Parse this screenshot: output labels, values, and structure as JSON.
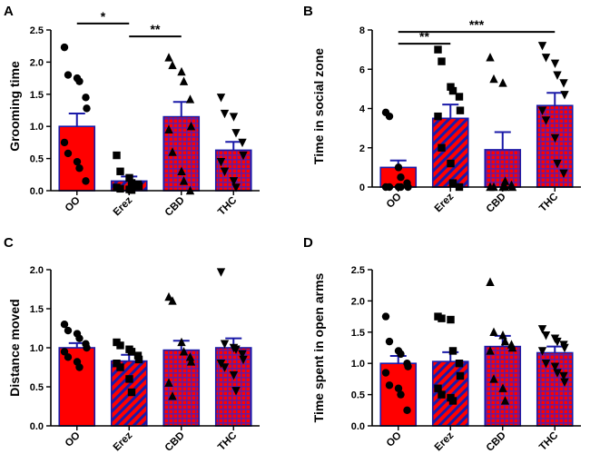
{
  "colors": {
    "red": "#ff0000",
    "blue": "#1a1aa8",
    "axis": "#000000"
  },
  "chart_data": [
    {
      "panel": "A",
      "type": "bar",
      "ylabel": "Grooming time",
      "ylim": [
        0,
        2.5
      ],
      "yticks": [
        "0.0",
        "0.5",
        "1.0",
        "1.5",
        "2.0",
        "2.5"
      ],
      "ytick_values": [
        0,
        0.5,
        1.0,
        1.5,
        2.0,
        2.5
      ],
      "categories": [
        "OO",
        "Erez",
        "CBD",
        "THC"
      ],
      "values": [
        1.0,
        0.15,
        1.15,
        0.63
      ],
      "errors": [
        0.2,
        0.07,
        0.23,
        0.13
      ],
      "points": [
        [
          2.23,
          1.8,
          1.75,
          1.7,
          1.45,
          1.28,
          0.75,
          0.58,
          0.45,
          0.35,
          0.15
        ],
        [
          0.55,
          0.3,
          0.2,
          0.12,
          0.1,
          0.07,
          0.05,
          0.03,
          0.02,
          0.01
        ],
        [
          2.07,
          1.95,
          1.85,
          1.7,
          1.42,
          1.0,
          0.95,
          0.6,
          0.3,
          0.15,
          0.0
        ],
        [
          1.45,
          1.2,
          1.15,
          0.9,
          0.75,
          0.55,
          0.45,
          0.3,
          0.15,
          0.05
        ]
      ],
      "significance": [
        {
          "from": 0,
          "to": 1,
          "label": "*",
          "y": 2.6
        },
        {
          "from": 1,
          "to": 2,
          "label": "**",
          "y": 2.4
        }
      ]
    },
    {
      "panel": "B",
      "type": "bar",
      "ylabel": "Time in social zone",
      "ylim": [
        0,
        8
      ],
      "yticks": [
        "0",
        "2",
        "4",
        "6",
        "8"
      ],
      "ytick_values": [
        0,
        2,
        4,
        6,
        8
      ],
      "categories": [
        "OO",
        "Erez",
        "CBD",
        "THC"
      ],
      "values": [
        1.0,
        3.5,
        1.9,
        4.15
      ],
      "errors": [
        0.35,
        0.7,
        0.9,
        0.65
      ],
      "points": [
        [
          3.8,
          3.6,
          1.0,
          0.5,
          0.2,
          0.0,
          0.0,
          0.0,
          0.0,
          0.0
        ],
        [
          7.0,
          6.4,
          5.1,
          4.9,
          4.6,
          3.9,
          3.6,
          2.0,
          1.2,
          0.2,
          0.0
        ],
        [
          6.6,
          5.5,
          5.3,
          0.3,
          0.1,
          0.0,
          0.0,
          0.0,
          0.0,
          0.0
        ],
        [
          7.2,
          6.6,
          6.3,
          5.7,
          5.3,
          4.7,
          3.9,
          3.4,
          2.5,
          1.2,
          0.7
        ]
      ],
      "significance": [
        {
          "from": 0,
          "to": 3,
          "label": "***",
          "y": 7.9
        },
        {
          "from": 0,
          "to": 1,
          "label": "**",
          "y": 7.3
        }
      ]
    },
    {
      "panel": "C",
      "type": "bar",
      "ylabel": "Distance moved",
      "ylim": [
        0,
        2.0
      ],
      "yticks": [
        "0.0",
        "0.5",
        "1.0",
        "1.5",
        "2.0"
      ],
      "ytick_values": [
        0,
        0.5,
        1.0,
        1.5,
        2.0
      ],
      "categories": [
        "OO",
        "Erez",
        "CBD",
        "THC"
      ],
      "values": [
        1.0,
        0.83,
        0.97,
        1.0
      ],
      "errors": [
        0.06,
        0.08,
        0.12,
        0.12
      ],
      "points": [
        [
          1.3,
          1.22,
          1.18,
          1.12,
          1.05,
          1.0,
          0.95,
          0.88,
          0.82,
          0.75
        ],
        [
          1.07,
          1.03,
          0.98,
          0.95,
          0.9,
          0.85,
          0.8,
          0.75,
          0.6,
          0.43
        ],
        [
          1.65,
          1.6,
          1.07,
          0.95,
          0.88,
          0.82,
          0.55,
          0.38
        ],
        [
          1.97,
          1.05,
          1.0,
          0.98,
          0.92,
          0.85,
          0.8,
          0.75,
          0.65,
          0.45
        ]
      ],
      "significance": []
    },
    {
      "panel": "D",
      "type": "bar",
      "ylabel": "Time spent in open arms",
      "ylim": [
        0,
        2.5
      ],
      "yticks": [
        "0.0",
        "0.5",
        "1.0",
        "1.5",
        "2.0",
        "2.5"
      ],
      "ytick_values": [
        0,
        0.5,
        1.0,
        1.5,
        2.0,
        2.5
      ],
      "categories": [
        "OO",
        "Erez",
        "CBD",
        "THC"
      ],
      "values": [
        1.0,
        1.03,
        1.27,
        1.17
      ],
      "errors": [
        0.12,
        0.15,
        0.17,
        0.1
      ],
      "points": [
        [
          1.75,
          1.35,
          1.2,
          1.15,
          1.0,
          0.95,
          0.85,
          0.65,
          0.6,
          0.5,
          0.25
        ],
        [
          1.75,
          1.72,
          1.7,
          1.2,
          1.0,
          0.8,
          0.6,
          0.5,
          0.45,
          0.4
        ],
        [
          2.3,
          1.5,
          1.45,
          1.35,
          1.3,
          1.25,
          1.2,
          0.75,
          0.6,
          0.4
        ],
        [
          1.55,
          1.45,
          1.4,
          1.35,
          1.3,
          1.25,
          1.2,
          1.0,
          0.95,
          0.85,
          0.8,
          0.7
        ]
      ],
      "significance": []
    }
  ]
}
